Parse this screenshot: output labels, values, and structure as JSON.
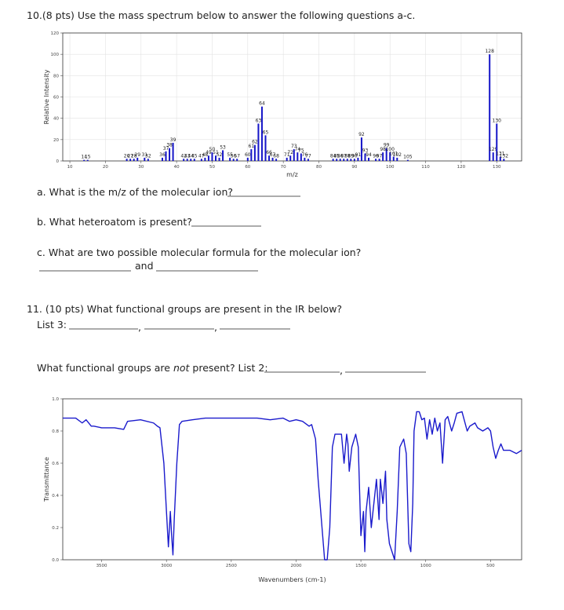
{
  "q10": {
    "title": "10.(8 pts) Use the mass spectrum below to answer the following questions a-c.",
    "a": "a. What is the m/z of the molecular ion?",
    "b": "b. What heteroatom is present?",
    "c": "c. What are two possible molecular formula for the molecular ion?",
    "c_and": "and"
  },
  "q11": {
    "title": "11. (10 pts) What functional groups are present in the IR below?",
    "list3": "List 3:",
    "sep": ",",
    "not_present": [
      "What functional groups are ",
      "not",
      " present? List 2:"
    ]
  },
  "chart_data": [
    {
      "type": "bar",
      "x_label": "m/z",
      "y_label": "Relative Intensity",
      "color": "#1515c8",
      "grid": true,
      "x": [
        14,
        15,
        26,
        27,
        28,
        29,
        31,
        32,
        36,
        37,
        38,
        39,
        42,
        43,
        44,
        45,
        47,
        48,
        49,
        50,
        51,
        52,
        53,
        55,
        56,
        57,
        60,
        61,
        62,
        63,
        64,
        65,
        66,
        67,
        68,
        71,
        72,
        73,
        74,
        75,
        76,
        77,
        84,
        85,
        86,
        87,
        88,
        89,
        90,
        91,
        92,
        93,
        94,
        96,
        97,
        98,
        99,
        100,
        101,
        102,
        105,
        128,
        129,
        130,
        131,
        132
      ],
      "values": [
        1,
        1,
        2,
        2,
        2,
        3,
        3,
        2,
        3,
        9,
        12,
        17,
        2,
        2,
        2,
        2,
        2,
        3,
        5,
        8,
        5,
        3,
        10,
        3,
        2,
        2,
        3,
        11,
        15,
        35,
        51,
        24,
        5,
        3,
        2,
        3,
        5,
        11,
        8,
        7,
        3,
        2,
        2,
        2,
        2,
        2,
        2,
        2,
        2,
        3,
        22,
        7,
        3,
        2,
        2,
        8,
        12,
        8,
        4,
        3,
        1,
        100,
        8,
        35,
        4,
        2
      ],
      "xlim": [
        8,
        137
      ],
      "xticks": [
        10,
        20,
        30,
        40,
        50,
        60,
        70,
        80,
        90,
        100,
        110,
        120,
        130
      ],
      "ylim": [
        0,
        120
      ],
      "yticks": [
        0,
        20,
        40,
        60,
        80,
        100,
        120
      ]
    },
    {
      "type": "line",
      "x_label": "Wavenumbers (cm-1)",
      "y_label": "Transmittance",
      "color": "#1a1acc",
      "grid": false,
      "x": [
        3800,
        3700,
        3650,
        3620,
        3580,
        3560,
        3500,
        3400,
        3330,
        3300,
        3200,
        3100,
        3070,
        3050,
        3020,
        3000,
        2985,
        2970,
        2960,
        2950,
        2940,
        2920,
        2900,
        2880,
        2800,
        2700,
        2500,
        2300,
        2200,
        2100,
        2050,
        2000,
        1950,
        1900,
        1880,
        1850,
        1830,
        1800,
        1780,
        1760,
        1740,
        1720,
        1700,
        1650,
        1630,
        1610,
        1600,
        1590,
        1570,
        1540,
        1520,
        1500,
        1480,
        1470,
        1460,
        1440,
        1420,
        1400,
        1380,
        1360,
        1350,
        1330,
        1310,
        1300,
        1280,
        1260,
        1240,
        1220,
        1200,
        1170,
        1150,
        1130,
        1115,
        1100,
        1090,
        1070,
        1050,
        1030,
        1010,
        990,
        970,
        950,
        930,
        910,
        890,
        870,
        850,
        830,
        800,
        780,
        760,
        720,
        700,
        680,
        660,
        620,
        600,
        560,
        520,
        500,
        480,
        460,
        440,
        420,
        400,
        350,
        300,
        260
      ],
      "values": [
        0.88,
        0.88,
        0.85,
        0.87,
        0.83,
        0.83,
        0.82,
        0.82,
        0.81,
        0.86,
        0.87,
        0.85,
        0.83,
        0.82,
        0.6,
        0.3,
        0.08,
        0.3,
        0.15,
        0.03,
        0.25,
        0.6,
        0.84,
        0.86,
        0.87,
        0.88,
        0.88,
        0.88,
        0.87,
        0.88,
        0.86,
        0.87,
        0.86,
        0.83,
        0.84,
        0.75,
        0.5,
        0.2,
        0,
        0,
        0.2,
        0.7,
        0.78,
        0.78,
        0.6,
        0.78,
        0.72,
        0.55,
        0.7,
        0.78,
        0.7,
        0.15,
        0.3,
        0.05,
        0.3,
        0.45,
        0.2,
        0.35,
        0.5,
        0.25,
        0.5,
        0.35,
        0.55,
        0.25,
        0.1,
        0.05,
        0,
        0.3,
        0.7,
        0.75,
        0.66,
        0.1,
        0.05,
        0.35,
        0.8,
        0.92,
        0.92,
        0.87,
        0.88,
        0.75,
        0.87,
        0.78,
        0.88,
        0.8,
        0.85,
        0.6,
        0.87,
        0.89,
        0.8,
        0.85,
        0.91,
        0.92,
        0.86,
        0.8,
        0.83,
        0.85,
        0.82,
        0.8,
        0.82,
        0.8,
        0.7,
        0.63,
        0.68,
        0.72,
        0.68,
        0.68,
        0.66,
        0.68
      ],
      "xlim": [
        3800,
        260
      ],
      "xticks": [
        3500,
        3000,
        2500,
        2000,
        1500,
        1000,
        500
      ],
      "ylim": [
        0,
        1
      ],
      "yticks": [
        {
          "value": 0,
          "label": "0.0"
        },
        0.2,
        0.4,
        0.6,
        0.8,
        {
          "value": 1,
          "label": "1.0"
        }
      ]
    }
  ]
}
